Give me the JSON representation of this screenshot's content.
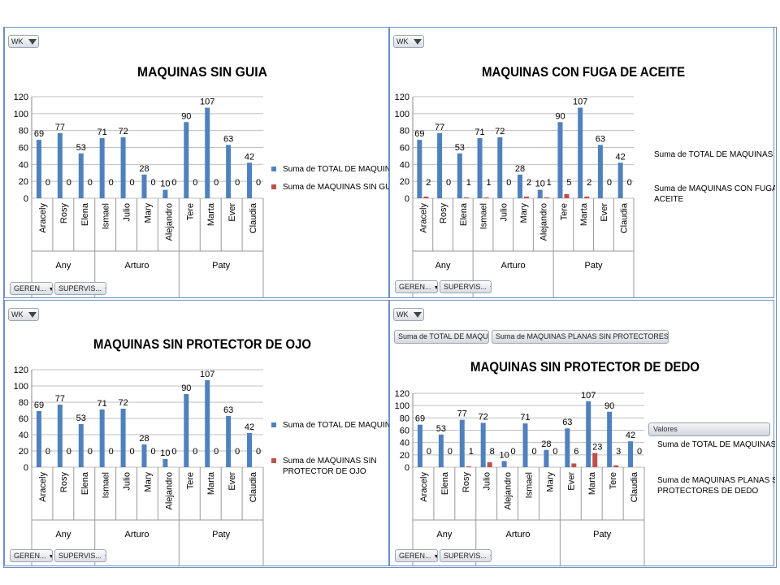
{
  "colors": {
    "total": "#4f81bd",
    "subset": "#c0504d",
    "gridline": "#bfbfbf",
    "border": "#6e8fc2"
  },
  "chart_data": [
    {
      "type": "bar",
      "title": "MAQUINAS SIN GUIA",
      "supervisors": [
        "Any",
        "Arturo",
        "Paty"
      ],
      "categories": [
        "Aracely",
        "Rosy",
        "Elena",
        "Ismael",
        "Julio",
        "Mary",
        "Alejandro",
        "Tere",
        "Marta",
        "Ever",
        "Claudia"
      ],
      "category_group": [
        "Any",
        "Any",
        "Any",
        "Arturo",
        "Arturo",
        "Arturo",
        "Arturo",
        "Paty",
        "Paty",
        "Paty",
        "Paty"
      ],
      "series": [
        {
          "name": "Suma de TOTAL DE MAQUINAS",
          "values": [
            69,
            77,
            53,
            71,
            72,
            28,
            10,
            90,
            107,
            63,
            42
          ]
        },
        {
          "name": "Suma de MAQUINAS SIN GUIA",
          "values": [
            0,
            0,
            0,
            0,
            0,
            0,
            0,
            0,
            0,
            0,
            0
          ]
        }
      ],
      "yticks": [
        0,
        20,
        40,
        60,
        80,
        100,
        120
      ],
      "ylim": [
        0,
        120
      ],
      "grid": true,
      "legend": "right",
      "filter_label": "WK",
      "row_fields": [
        "GEREN...",
        "SUPERVIS..."
      ]
    },
    {
      "type": "bar",
      "title": "MAQUINAS CON FUGA DE ACEITE",
      "supervisors": [
        "Any",
        "Arturo",
        "Paty"
      ],
      "categories": [
        "Aracely",
        "Rosy",
        "Elena",
        "Ismael",
        "Julio",
        "Mary",
        "Alejandro",
        "Tere",
        "Marta",
        "Ever",
        "Claudia"
      ],
      "category_group": [
        "Any",
        "Any",
        "Any",
        "Arturo",
        "Arturo",
        "Arturo",
        "Arturo",
        "Paty",
        "Paty",
        "Paty",
        "Paty"
      ],
      "series": [
        {
          "name": "Suma de TOTAL DE MAQUINAS",
          "values": [
            69,
            77,
            53,
            71,
            72,
            28,
            10,
            90,
            107,
            63,
            42
          ]
        },
        {
          "name": "Suma de MAQUINAS CON FUGA DE ACEITE",
          "values": [
            2,
            0,
            1,
            1,
            0,
            2,
            1,
            5,
            2,
            0,
            0
          ]
        }
      ],
      "yticks": [
        0,
        20,
        40,
        60,
        80,
        100,
        120
      ],
      "ylim": [
        0,
        120
      ],
      "grid": true,
      "legend": "right",
      "filter_label": "WK",
      "row_fields": [
        "GEREN...",
        "SUPERVIS..."
      ]
    },
    {
      "type": "bar",
      "title": "MAQUINAS SIN PROTECTOR DE OJO",
      "supervisors": [
        "Any",
        "Arturo",
        "Paty"
      ],
      "categories": [
        "Aracely",
        "Rosy",
        "Elena",
        "Ismael",
        "Julio",
        "Mary",
        "Alejandro",
        "Tere",
        "Marta",
        "Ever",
        "Claudia"
      ],
      "category_group": [
        "Any",
        "Any",
        "Any",
        "Arturo",
        "Arturo",
        "Arturo",
        "Arturo",
        "Paty",
        "Paty",
        "Paty",
        "Paty"
      ],
      "series": [
        {
          "name": "Suma de TOTAL DE MAQUINAS",
          "values": [
            69,
            77,
            53,
            71,
            72,
            28,
            10,
            90,
            107,
            63,
            42
          ]
        },
        {
          "name": "Suma de MAQUINAS SIN PROTECTOR DE OJO",
          "values": [
            0,
            0,
            0,
            0,
            0,
            0,
            0,
            0,
            0,
            0,
            0
          ]
        }
      ],
      "yticks": [
        0,
        20,
        40,
        60,
        80,
        100,
        120
      ],
      "ylim": [
        0,
        120
      ],
      "grid": true,
      "legend": "right",
      "filter_label": "WK",
      "row_fields": [
        "GEREN...",
        "SUPERVIS..."
      ]
    },
    {
      "type": "bar",
      "title": "MAQUINAS SIN PROTECTOR DE DEDO",
      "supervisors": [
        "Any",
        "Arturo",
        "Paty"
      ],
      "categories": [
        "Aracely",
        "Elena",
        "Rosy",
        "Julio",
        "Alejandro",
        "Ismael",
        "Mary",
        "Ever",
        "Marta",
        "Tere",
        "Claudia"
      ],
      "category_group": [
        "Any",
        "Any",
        "Any",
        "Arturo",
        "Arturo",
        "Arturo",
        "Arturo",
        "Paty",
        "Paty",
        "Paty",
        "Paty"
      ],
      "series": [
        {
          "name": "Suma de TOTAL DE MAQUINAS",
          "values": [
            69,
            53,
            77,
            72,
            10,
            71,
            28,
            63,
            107,
            90,
            42
          ]
        },
        {
          "name": "Suma de MAQUINAS PLANAS SIN PROTECTORES DE DEDO",
          "values": [
            0,
            0,
            1,
            8,
            0,
            0,
            0,
            6,
            23,
            3,
            0
          ]
        }
      ],
      "yticks": [
        0,
        20,
        40,
        60,
        80,
        100,
        120
      ],
      "ylim": [
        0,
        120
      ],
      "grid": true,
      "legend": "right",
      "legend_title": "Valores",
      "value_fields": [
        "Suma de TOTAL DE MAQUI...",
        "Suma de MAQUINAS PLANAS SIN PROTECTORES DE ..."
      ],
      "filter_label": "WK",
      "row_fields": [
        "GEREN...",
        "SUPERVIS..."
      ]
    }
  ]
}
